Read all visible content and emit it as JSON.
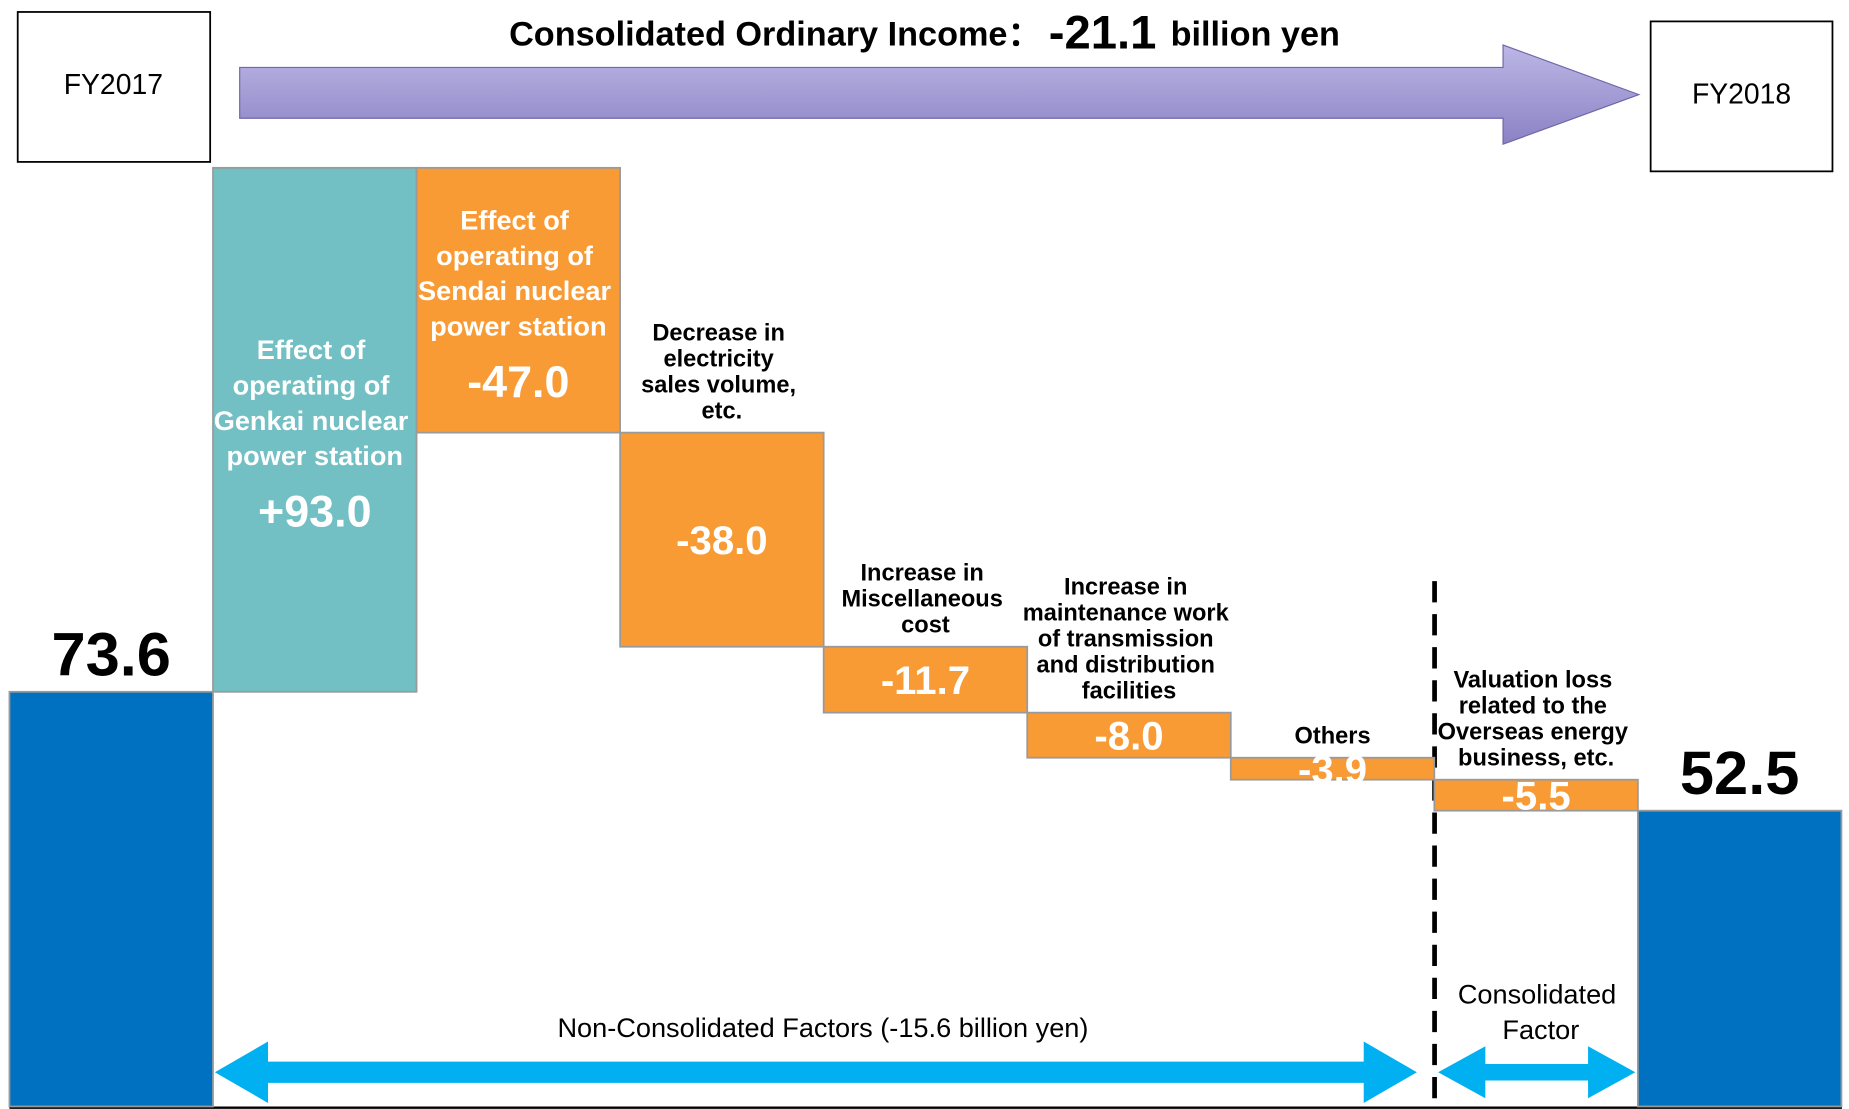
{
  "chart_data": {
    "type": "waterfall",
    "title": "Consolidated Ordinary Income：",
    "total_change": -21.1,
    "total_change_unit": "billion yen",
    "categories": [
      "FY2017",
      "Effect of operating of Genkai nuclear power station",
      "Effect of operating of Sendai nuclear power station",
      "Decrease in electricity sales volume, etc.",
      "Increase in Miscellaneous cost",
      "Increase in maintenance work of transmission and distribution facilities",
      "Others",
      "Valuation loss related to the Overseas energy business, etc.",
      "FY2018"
    ],
    "values": [
      73.6,
      93,
      -47,
      -38,
      -11.7,
      -8,
      -3.9,
      -5.5,
      52.5
    ],
    "value_labels": [
      "73.6",
      "+93.0",
      "-47.0",
      "-38.0",
      "-11.7",
      "-8.0",
      "-3.9",
      "-5.5",
      "52.5"
    ],
    "colors": {
      "total": "#0070c0",
      "increase": "#72bfc4",
      "decrease": "#f89b35"
    },
    "groups": [
      {
        "label": "Non-Consolidated Factors (-15.6 billion yen)"
      },
      {
        "label": "Consolidated Factor"
      }
    ]
  }
}
